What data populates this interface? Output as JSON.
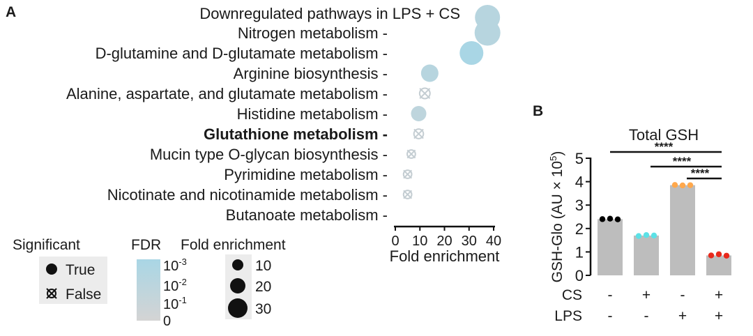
{
  "chart_data": [
    {
      "type": "scatter",
      "panel": "A",
      "title": "Downregulated pathways in LPS + CS",
      "xlabel": "Fold enrichment",
      "xlim": [
        0,
        40
      ],
      "xticks": [
        0,
        10,
        20,
        30,
        40
      ],
      "categories": [
        "Nitrogen metabolism",
        "D-glutamine and D-glutamate metabolism",
        "Arginine biosynthesis",
        "Alanine, aspartate, and glutamate metabolism",
        "Histidine metabolism",
        "Glutathione metabolism",
        "Mucin type O-glycan biosynthesis",
        "Pyrimidine metabolism",
        "Nicotinate and nicotinamide metabolism",
        "Butanoate metabolism"
      ],
      "highlight": "Glutathione metabolism",
      "title_point": {
        "fold_enrichment": 37.5,
        "significant": true,
        "fdr": 0.01,
        "size": 36
      },
      "points": [
        {
          "fold_enrichment": 37.5,
          "significant": true,
          "fdr": 0.01,
          "size": 37
        },
        {
          "fold_enrichment": 31.0,
          "significant": true,
          "fdr": 0.001,
          "size": 34
        },
        {
          "fold_enrichment": 14.0,
          "significant": true,
          "fdr": 0.01,
          "size": 25
        },
        {
          "fold_enrichment": 12.0,
          "significant": false,
          "fdr": 0.1,
          "size": 24
        },
        {
          "fold_enrichment": 9.5,
          "significant": true,
          "fdr": 0.03,
          "size": 22
        },
        {
          "fold_enrichment": 9.5,
          "significant": false,
          "fdr": 0.1,
          "size": 22
        },
        {
          "fold_enrichment": 6.5,
          "significant": false,
          "fdr": 0.2,
          "size": 19
        },
        {
          "fold_enrichment": 5.0,
          "significant": false,
          "fdr": 0.3,
          "size": 19
        },
        {
          "fold_enrichment": 5.0,
          "significant": false,
          "fdr": 0.3,
          "size": 19
        }
      ],
      "legend": {
        "significant_title": "Significant",
        "significant_items": [
          "True",
          "False"
        ],
        "fdr_title": "FDR",
        "fdr_ticks": [
          "0",
          "10^-1",
          "10^-2",
          "10^-3"
        ],
        "fdr_color_low": "#d4d4d4",
        "fdr_color_high": "#a9d6e5",
        "fold_title": "Fold enrichment",
        "fold_items": [
          "10",
          "20",
          "30"
        ]
      }
    },
    {
      "type": "bar",
      "panel": "B",
      "title": "Total GSH",
      "ylabel": "GSH-Glo (AU × 10^5)",
      "ylim": [
        0,
        5
      ],
      "yticks": [
        0,
        1,
        2,
        3,
        4,
        5
      ],
      "row_labels": [
        "CS",
        "LPS"
      ],
      "conditions": [
        {
          "CS": "-",
          "LPS": "-"
        },
        {
          "CS": "+",
          "LPS": "-"
        },
        {
          "CS": "-",
          "LPS": "+"
        },
        {
          "CS": "+",
          "LPS": "+"
        }
      ],
      "values": [
        2.4,
        1.7,
        3.85,
        0.85
      ],
      "replicates": [
        [
          2.4,
          2.42,
          2.39
        ],
        [
          1.68,
          1.72,
          1.7
        ],
        [
          3.86,
          3.84,
          3.85
        ],
        [
          0.85,
          0.9,
          0.84
        ]
      ],
      "dot_colors": [
        "#000000",
        "#5ce1e6",
        "#ffa84c",
        "#e8291c"
      ],
      "bar_color": "#bdbdbd",
      "significance": [
        {
          "from": 0,
          "to": 3,
          "label": "****"
        },
        {
          "from": 2,
          "to": 3,
          "label": "****",
          "line_from": 1
        },
        {
          "from": 2,
          "to": 3,
          "label": "****"
        }
      ]
    }
  ]
}
